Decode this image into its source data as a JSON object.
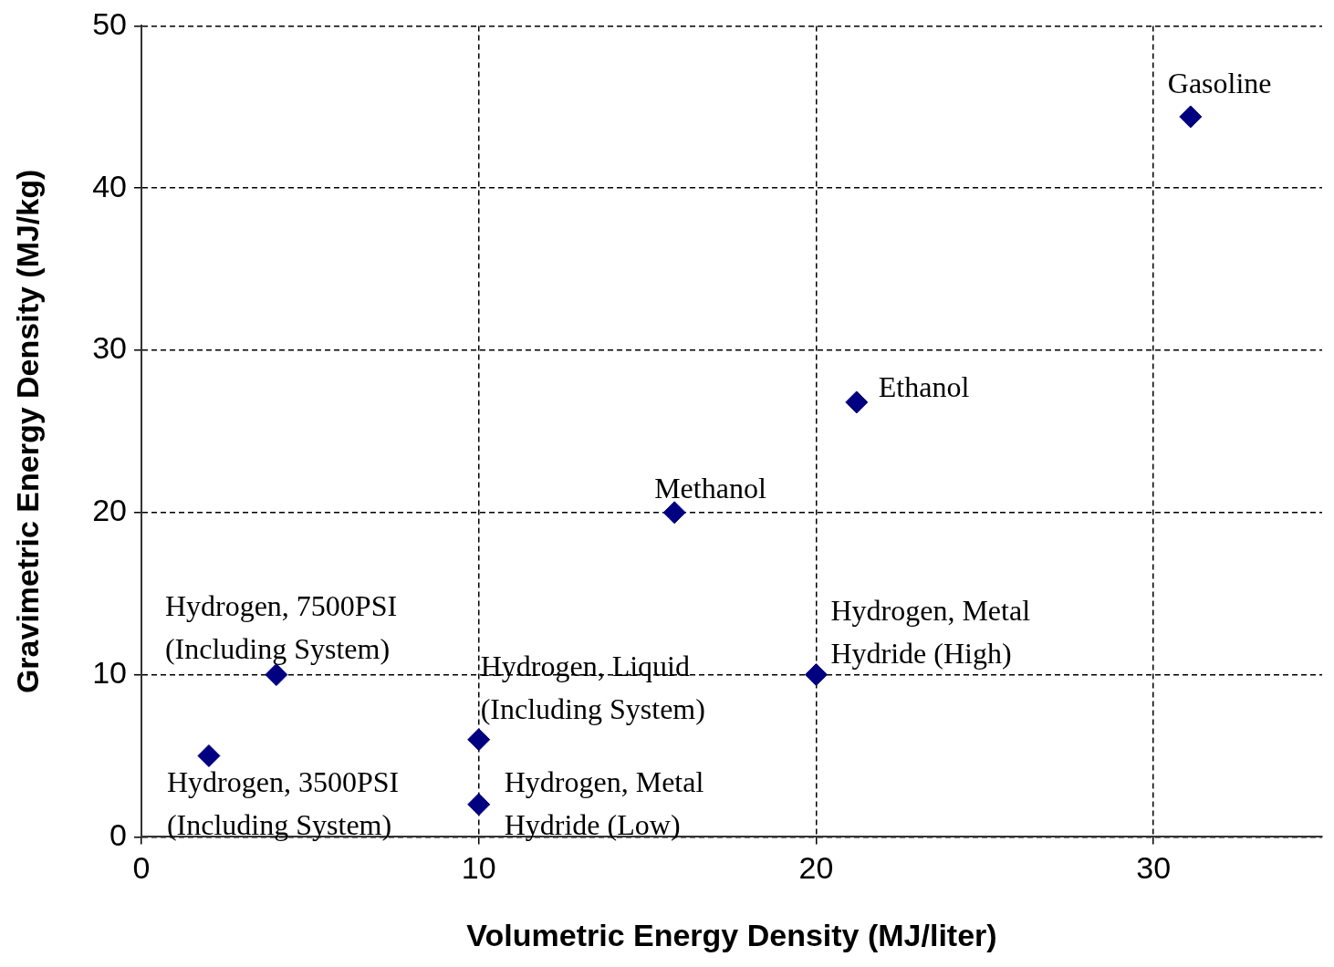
{
  "chart_data": {
    "type": "scatter",
    "xlabel": "Volumetric Energy Density (MJ/liter)",
    "ylabel": "Gravimetric Energy Density (MJ/kg)",
    "x": [
      31.1,
      21.2,
      15.8,
      4,
      2,
      10,
      10,
      20
    ],
    "values": [
      44.4,
      26.8,
      20,
      10,
      5,
      6,
      2,
      10
    ],
    "color": "#000080",
    "marker": "diamond",
    "xlim": [
      0,
      35
    ],
    "xticks": [
      0,
      10,
      20,
      30
    ],
    "ylim": [
      0,
      50
    ],
    "yticks": [
      0,
      10,
      20,
      30,
      40,
      50
    ],
    "grid": true,
    "annotations": [
      {
        "text": "Gasoline",
        "x": 31.1,
        "y": 44.4
      },
      {
        "text": "Ethanol",
        "x": 21.2,
        "y": 26.8
      },
      {
        "text": "Methanol",
        "x": 15.8,
        "y": 20
      },
      {
        "text": "Hydrogen, 7500PSI\n(Including System)",
        "x": 4,
        "y": 10
      },
      {
        "text": "Hydrogen, 3500PSI\n(Including System)",
        "x": 2,
        "y": 5
      },
      {
        "text": "Hydrogen, Liquid\n(Including System)",
        "x": 10,
        "y": 6
      },
      {
        "text": "Hydrogen, Metal\nHydride (Low)",
        "x": 10,
        "y": 2
      },
      {
        "text": "Hydrogen, Metal\nHydride (High)",
        "x": 20,
        "y": 10
      }
    ]
  }
}
